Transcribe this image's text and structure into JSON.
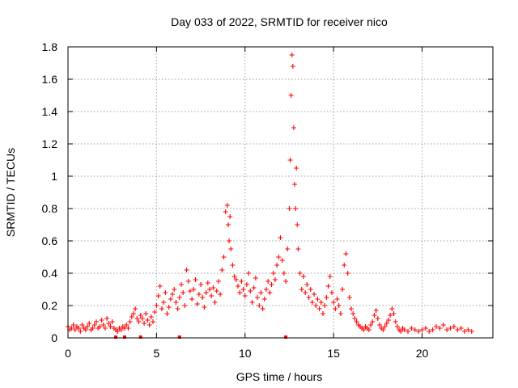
{
  "chart_data": {
    "type": "scatter",
    "title": "Day 033 of 2022, SRMTID for receiver nico",
    "xlabel": "GPS time / hours",
    "ylabel": "SRMTID / TECUs",
    "xlim": [
      0,
      24
    ],
    "ylim": [
      0,
      1.8
    ],
    "x_ticks": [
      0,
      5,
      10,
      15,
      20
    ],
    "x_tick_labels": [
      "0",
      "5",
      "10",
      "15",
      "20"
    ],
    "y_ticks": [
      0,
      0.2,
      0.4,
      0.6,
      0.8,
      1.0,
      1.2,
      1.4,
      1.6,
      1.8
    ],
    "y_tick_labels": [
      "0",
      "0.2",
      "0.4",
      "0.6",
      "0.8",
      "1",
      "1.2",
      "1.4",
      "1.6",
      "1.8"
    ],
    "grid": true,
    "marker": "+",
    "color": "#ff0000",
    "series": [
      {
        "name": "SRMTID",
        "points": [
          [
            0.0,
            0.07
          ],
          [
            0.1,
            0.05
          ],
          [
            0.2,
            0.06
          ],
          [
            0.3,
            0.08
          ],
          [
            0.4,
            0.05
          ],
          [
            0.5,
            0.07
          ],
          [
            0.6,
            0.06
          ],
          [
            0.7,
            0.04
          ],
          [
            0.8,
            0.08
          ],
          [
            0.9,
            0.06
          ],
          [
            1.0,
            0.05
          ],
          [
            1.1,
            0.07
          ],
          [
            1.2,
            0.09
          ],
          [
            1.3,
            0.05
          ],
          [
            1.4,
            0.06
          ],
          [
            1.5,
            0.08
          ],
          [
            1.6,
            0.1
          ],
          [
            1.7,
            0.06
          ],
          [
            1.8,
            0.07
          ],
          [
            1.9,
            0.11
          ],
          [
            2.0,
            0.08
          ],
          [
            2.1,
            0.06
          ],
          [
            2.2,
            0.12
          ],
          [
            2.3,
            0.09
          ],
          [
            2.4,
            0.07
          ],
          [
            2.5,
            0.1
          ],
          [
            2.6,
            0.06
          ],
          [
            2.7,
            0.05
          ],
          [
            2.8,
            0.04
          ],
          [
            2.9,
            0.06
          ],
          [
            3.0,
            0.05
          ],
          [
            3.1,
            0.07
          ],
          [
            3.2,
            0.06
          ],
          [
            3.3,
            0.08
          ],
          [
            3.4,
            0.06
          ],
          [
            3.5,
            0.1
          ],
          [
            3.6,
            0.13
          ],
          [
            3.7,
            0.15
          ],
          [
            3.8,
            0.18
          ],
          [
            3.9,
            0.12
          ],
          [
            4.0,
            0.1
          ],
          [
            4.1,
            0.14
          ],
          [
            4.2,
            0.12
          ],
          [
            4.3,
            0.09
          ],
          [
            4.4,
            0.15
          ],
          [
            4.5,
            0.11
          ],
          [
            4.6,
            0.08
          ],
          [
            4.7,
            0.13
          ],
          [
            4.8,
            0.1
          ],
          [
            4.9,
            0.16
          ],
          [
            5.0,
            0.2
          ],
          [
            5.1,
            0.26
          ],
          [
            5.2,
            0.32
          ],
          [
            5.3,
            0.18
          ],
          [
            5.4,
            0.22
          ],
          [
            5.5,
            0.28
          ],
          [
            5.6,
            0.15
          ],
          [
            5.7,
            0.19
          ],
          [
            5.8,
            0.24
          ],
          [
            5.9,
            0.27
          ],
          [
            6.0,
            0.3
          ],
          [
            6.1,
            0.22
          ],
          [
            6.2,
            0.18
          ],
          [
            6.3,
            0.25
          ],
          [
            6.4,
            0.33
          ],
          [
            6.5,
            0.28
          ],
          [
            6.6,
            0.2
          ],
          [
            6.7,
            0.42
          ],
          [
            6.8,
            0.35
          ],
          [
            6.9,
            0.29
          ],
          [
            7.0,
            0.24
          ],
          [
            7.1,
            0.3
          ],
          [
            7.2,
            0.36
          ],
          [
            7.3,
            0.21
          ],
          [
            7.4,
            0.27
          ],
          [
            7.5,
            0.33
          ],
          [
            7.6,
            0.25
          ],
          [
            7.7,
            0.19
          ],
          [
            7.8,
            0.28
          ],
          [
            7.9,
            0.34
          ],
          [
            8.0,
            0.3
          ],
          [
            8.1,
            0.26
          ],
          [
            8.2,
            0.31
          ],
          [
            8.3,
            0.22
          ],
          [
            8.4,
            0.29
          ],
          [
            8.5,
            0.35
          ],
          [
            8.6,
            0.27
          ],
          [
            8.7,
            0.42
          ],
          [
            8.8,
            0.5
          ],
          [
            8.9,
            0.78
          ],
          [
            9.0,
            0.82
          ],
          [
            9.05,
            0.7
          ],
          [
            9.1,
            0.6
          ],
          [
            9.15,
            0.75
          ],
          [
            9.2,
            0.55
          ],
          [
            9.3,
            0.45
          ],
          [
            9.4,
            0.38
          ],
          [
            9.5,
            0.36
          ],
          [
            9.6,
            0.32
          ],
          [
            9.7,
            0.28
          ],
          [
            9.8,
            0.35
          ],
          [
            9.9,
            0.3
          ],
          [
            10.0,
            0.26
          ],
          [
            10.1,
            0.33
          ],
          [
            10.2,
            0.4
          ],
          [
            10.3,
            0.29
          ],
          [
            10.4,
            0.22
          ],
          [
            10.5,
            0.31
          ],
          [
            10.6,
            0.37
          ],
          [
            10.7,
            0.25
          ],
          [
            10.8,
            0.2
          ],
          [
            10.9,
            0.28
          ],
          [
            11.0,
            0.18
          ],
          [
            11.1,
            0.24
          ],
          [
            11.2,
            0.3
          ],
          [
            11.3,
            0.35
          ],
          [
            11.4,
            0.28
          ],
          [
            11.5,
            0.33
          ],
          [
            11.6,
            0.4
          ],
          [
            11.7,
            0.36
          ],
          [
            11.8,
            0.45
          ],
          [
            11.9,
            0.5
          ],
          [
            12.0,
            0.62
          ],
          [
            12.1,
            0.48
          ],
          [
            12.2,
            0.4
          ],
          [
            12.3,
            0.35
          ],
          [
            12.4,
            0.55
          ],
          [
            12.5,
            0.8
          ],
          [
            12.55,
            1.1
          ],
          [
            12.6,
            1.5
          ],
          [
            12.65,
            1.75
          ],
          [
            12.7,
            1.68
          ],
          [
            12.75,
            1.3
          ],
          [
            12.8,
            0.95
          ],
          [
            12.85,
            0.8
          ],
          [
            12.9,
            1.05
          ],
          [
            12.95,
            0.7
          ],
          [
            13.0,
            0.55
          ],
          [
            13.1,
            0.4
          ],
          [
            13.2,
            0.3
          ],
          [
            13.3,
            0.38
          ],
          [
            13.4,
            0.28
          ],
          [
            13.5,
            0.33
          ],
          [
            13.6,
            0.25
          ],
          [
            13.7,
            0.3
          ],
          [
            13.8,
            0.22
          ],
          [
            13.9,
            0.27
          ],
          [
            14.0,
            0.2
          ],
          [
            14.1,
            0.24
          ],
          [
            14.2,
            0.18
          ],
          [
            14.3,
            0.22
          ],
          [
            14.4,
            0.15
          ],
          [
            14.5,
            0.2
          ],
          [
            14.6,
            0.25
          ],
          [
            14.7,
            0.32
          ],
          [
            14.8,
            0.38
          ],
          [
            14.9,
            0.28
          ],
          [
            15.0,
            0.22
          ],
          [
            15.1,
            0.18
          ],
          [
            15.2,
            0.24
          ],
          [
            15.3,
            0.2
          ],
          [
            15.4,
            0.15
          ],
          [
            15.5,
            0.3
          ],
          [
            15.6,
            0.45
          ],
          [
            15.7,
            0.52
          ],
          [
            15.8,
            0.4
          ],
          [
            15.9,
            0.25
          ],
          [
            16.0,
            0.18
          ],
          [
            16.1,
            0.15
          ],
          [
            16.2,
            0.12
          ],
          [
            16.3,
            0.1
          ],
          [
            16.4,
            0.08
          ],
          [
            16.5,
            0.07
          ],
          [
            16.6,
            0.06
          ],
          [
            16.7,
            0.05
          ],
          [
            16.8,
            0.07
          ],
          [
            16.9,
            0.06
          ],
          [
            17.0,
            0.05
          ],
          [
            17.1,
            0.08
          ],
          [
            17.2,
            0.1
          ],
          [
            17.3,
            0.14
          ],
          [
            17.4,
            0.17
          ],
          [
            17.5,
            0.12
          ],
          [
            17.6,
            0.08
          ],
          [
            17.7,
            0.06
          ],
          [
            17.8,
            0.05
          ],
          [
            17.9,
            0.07
          ],
          [
            18.0,
            0.09
          ],
          [
            18.1,
            0.11
          ],
          [
            18.2,
            0.14
          ],
          [
            18.3,
            0.18
          ],
          [
            18.4,
            0.15
          ],
          [
            18.5,
            0.1
          ],
          [
            18.6,
            0.07
          ],
          [
            18.7,
            0.05
          ],
          [
            18.8,
            0.04
          ],
          [
            18.9,
            0.06
          ],
          [
            19.0,
            0.05
          ],
          [
            19.2,
            0.04
          ],
          [
            19.4,
            0.06
          ],
          [
            19.6,
            0.05
          ],
          [
            19.8,
            0.04
          ],
          [
            20.0,
            0.05
          ],
          [
            20.2,
            0.06
          ],
          [
            20.4,
            0.04
          ],
          [
            20.6,
            0.05
          ],
          [
            20.8,
            0.07
          ],
          [
            21.0,
            0.06
          ],
          [
            21.2,
            0.08
          ],
          [
            21.4,
            0.05
          ],
          [
            21.6,
            0.06
          ],
          [
            21.8,
            0.07
          ],
          [
            22.0,
            0.05
          ],
          [
            22.2,
            0.06
          ],
          [
            22.4,
            0.04
          ],
          [
            22.6,
            0.05
          ],
          [
            22.8,
            0.04
          ]
        ]
      }
    ],
    "low_markers_x": [
      2.7,
      3.2,
      4.1,
      6.3,
      12.3
    ]
  }
}
